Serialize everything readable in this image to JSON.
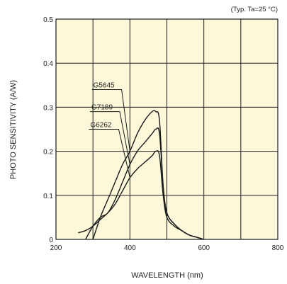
{
  "colors": {
    "plot_background": "#fdf8da",
    "grid": "#1a1a1a",
    "curve": "#1a1a1a",
    "text": "#222222"
  },
  "chart_data": {
    "type": "line",
    "annotation": "(Typ. Ta=25 °C)",
    "xlabel": "WAVELENGTH (nm)",
    "ylabel": "PHOTO SENSITIVITY (A/W)",
    "xlim": [
      200,
      800
    ],
    "ylim": [
      0,
      0.5
    ],
    "x_ticks": [
      200,
      400,
      600,
      800
    ],
    "x_tick_labels": [
      "200",
      "400",
      "600",
      "800"
    ],
    "y_ticks": [
      0,
      0.1,
      0.2,
      0.3,
      0.4,
      0.5
    ],
    "y_tick_labels": [
      "0",
      "0.1",
      "0.2",
      "0.3",
      "0.4",
      "0.5"
    ],
    "x_grid_step": 100,
    "grid": true,
    "series": [
      {
        "name": "G5645",
        "x": [
          300,
          320,
          340,
          360,
          380,
          400,
          420,
          440,
          460,
          470,
          480,
          490,
          500,
          520,
          540,
          560,
          580,
          600
        ],
        "values": [
          0.0,
          0.05,
          0.09,
          0.13,
          0.17,
          0.2,
          0.24,
          0.27,
          0.29,
          0.29,
          0.27,
          0.12,
          0.06,
          0.035,
          0.02,
          0.01,
          0.005,
          0.0
        ],
        "label_x": 320,
        "label_y": 0.34
      },
      {
        "name": "G7189",
        "x": [
          280,
          300,
          320,
          340,
          360,
          380,
          400,
          420,
          440,
          460,
          470,
          480,
          490,
          500,
          520,
          540,
          560,
          580,
          600
        ],
        "values": [
          0.0,
          0.03,
          0.05,
          0.06,
          0.09,
          0.13,
          0.17,
          0.2,
          0.22,
          0.24,
          0.25,
          0.24,
          0.12,
          0.06,
          0.035,
          0.02,
          0.01,
          0.005,
          0.0
        ],
        "label_x": 315,
        "label_y": 0.29
      },
      {
        "name": "G6262",
        "x": [
          260,
          280,
          300,
          320,
          340,
          360,
          380,
          400,
          420,
          440,
          460,
          470,
          480,
          490,
          500,
          520,
          540,
          560,
          580,
          600
        ],
        "values": [
          0.015,
          0.02,
          0.03,
          0.045,
          0.06,
          0.08,
          0.11,
          0.14,
          0.16,
          0.175,
          0.19,
          0.2,
          0.19,
          0.1,
          0.05,
          0.03,
          0.02,
          0.01,
          0.005,
          0.0
        ],
        "label_x": 312,
        "label_y": 0.25
      }
    ]
  }
}
